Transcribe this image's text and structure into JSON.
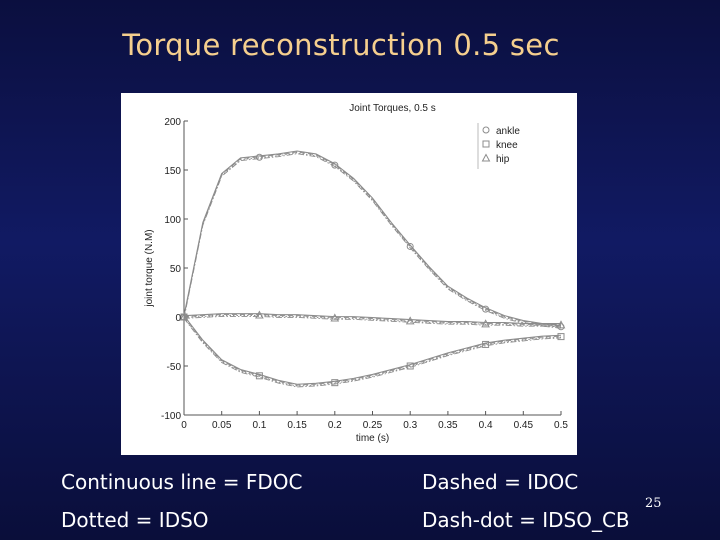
{
  "slide": {
    "title": "Torque reconstruction 0.5 sec",
    "captions": {
      "continuous": "Continuous line = FDOC",
      "dashed": "Dashed = IDOC",
      "dotted": "Dotted = IDSO",
      "dashdot": "Dash-dot = IDSO_CB"
    },
    "slide_number": "25"
  },
  "chart_data": {
    "type": "line",
    "title": "Joint Torques, 0.5 s",
    "xlabel": "time (s)",
    "ylabel": "joint torque (N.M)",
    "xlim": [
      0,
      0.5
    ],
    "ylim": [
      -100,
      200
    ],
    "x_ticks": [
      0,
      0.05,
      0.1,
      0.15,
      0.2,
      0.25,
      0.3,
      0.35,
      0.4,
      0.45,
      0.5
    ],
    "y_ticks": [
      -100,
      -50,
      0,
      50,
      100,
      150,
      200
    ],
    "grid": false,
    "legend_position": "top-right",
    "x": [
      0,
      0.025,
      0.05,
      0.075,
      0.1,
      0.125,
      0.15,
      0.175,
      0.2,
      0.225,
      0.25,
      0.275,
      0.3,
      0.325,
      0.35,
      0.375,
      0.4,
      0.425,
      0.45,
      0.475,
      0.5
    ],
    "series": [
      {
        "name": "ankle",
        "marker": "circle",
        "values": [
          0,
          95,
          145,
          161,
          163,
          165,
          168,
          165,
          155,
          140,
          120,
          95,
          72,
          50,
          30,
          18,
          8,
          0,
          -5,
          -8,
          -10
        ]
      },
      {
        "name": "knee",
        "marker": "square",
        "values": [
          0,
          -25,
          -45,
          -55,
          -60,
          -66,
          -70,
          -69,
          -67,
          -64,
          -60,
          -55,
          -50,
          -44,
          -38,
          -33,
          -28,
          -25,
          -23,
          -21,
          -20
        ]
      },
      {
        "name": "hip",
        "marker": "triangle",
        "values": [
          0,
          1,
          2,
          2,
          2,
          1,
          1,
          0,
          -1,
          -1,
          -2,
          -3,
          -4,
          -5,
          -6,
          -6,
          -7,
          -7,
          -8,
          -8,
          -8
        ]
      }
    ],
    "colors": {
      "line": "#8c8c8c",
      "text": "#222222",
      "axis": "#555555"
    }
  }
}
